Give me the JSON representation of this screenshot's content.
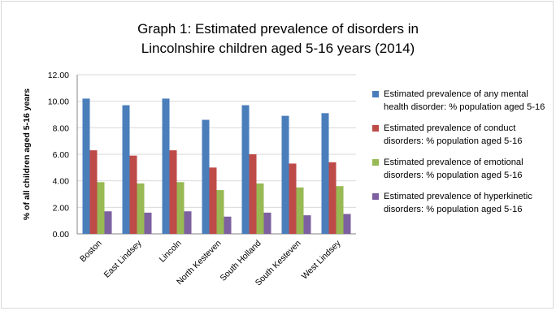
{
  "chart_data": {
    "type": "bar",
    "title": [
      "Graph 1: Estimated prevalence of disorders in",
      "Lincolnshire children aged 5-16 years (2014)"
    ],
    "ylabel": "% of all children aged 5-16 years",
    "xlabel": "",
    "ylim": [
      0,
      12
    ],
    "yticks": [
      "0.00",
      "2.00",
      "4.00",
      "6.00",
      "8.00",
      "10.00",
      "12.00"
    ],
    "grid": true,
    "legend_position": "right",
    "categories": [
      "Boston",
      "East Lindsey",
      "Lincoln",
      "North Kesteven",
      "South Holland",
      "South Kesteven",
      "West Lindsey"
    ],
    "series": [
      {
        "name": "Estimated prevalence of any mental health disorder: % population aged 5-16",
        "color": "#4a7ebb",
        "values": [
          10.2,
          9.7,
          10.2,
          8.6,
          9.7,
          8.9,
          9.1
        ]
      },
      {
        "name": "Estimated prevalence of conduct disorders: % population aged 5-16",
        "color": "#be4b48",
        "values": [
          6.3,
          5.9,
          6.3,
          5.0,
          6.0,
          5.3,
          5.4
        ]
      },
      {
        "name": "Estimated prevalence of emotional disorders: % population aged 5-16",
        "color": "#98b954",
        "values": [
          3.9,
          3.8,
          3.9,
          3.3,
          3.8,
          3.5,
          3.6
        ]
      },
      {
        "name": "Estimated prevalence of hyperkinetic disorders: % population aged 5-16",
        "color": "#7d60a0",
        "values": [
          1.7,
          1.6,
          1.7,
          1.3,
          1.6,
          1.4,
          1.5
        ]
      }
    ]
  }
}
